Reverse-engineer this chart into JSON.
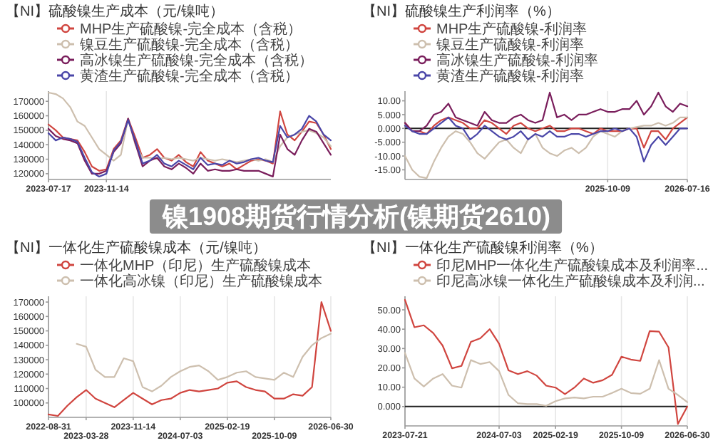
{
  "chart_data": [
    {
      "type": "line",
      "title": "【NI】硫酸镍生产成本（元/镍吨）",
      "legend": "top",
      "grid": "x",
      "categories": [
        "2023-07-17",
        null,
        null,
        null,
        null,
        null,
        null,
        null,
        "2023-11-14",
        null,
        null,
        null,
        null,
        null,
        null,
        null,
        null,
        null,
        null,
        null,
        null,
        null,
        null,
        null,
        null,
        null,
        null,
        null,
        null,
        null,
        null,
        null,
        null,
        null,
        null,
        null,
        null,
        null,
        null,
        null
      ],
      "ylim": [
        116000,
        177000
      ],
      "yticks": [
        120000,
        130000,
        140000,
        150000,
        160000,
        170000
      ],
      "series": [
        {
          "name": "MHP生产硫酸镍-完全成本（含税）",
          "color": "#d0453f",
          "values": [
            154000,
            150000,
            145000,
            144000,
            143000,
            135000,
            125000,
            122000,
            123000,
            137000,
            143000,
            158000,
            145000,
            131000,
            133000,
            137000,
            131000,
            129000,
            133000,
            128000,
            125000,
            135000,
            129000,
            127000,
            125000,
            127000,
            123000,
            126000,
            129000,
            130000,
            129000,
            127000,
            163000,
            147000,
            143000,
            149000,
            156000,
            155000,
            147000,
            137000
          ]
        },
        {
          "name": "镍豆生产硫酸镍-完全成本（含税）",
          "color": "#cdbfae",
          "values": [
            176000,
            175000,
            172000,
            166000,
            156000,
            153000,
            145000,
            137000,
            133000,
            129000,
            133000,
            158000,
            140000,
            131000,
            131000,
            130000,
            131000,
            130000,
            131000,
            130000,
            129000,
            131000,
            130000,
            129000,
            130000,
            129000,
            128000,
            129000,
            130000,
            129000,
            130000,
            128000,
            139000,
            145000,
            147000,
            149000,
            150000,
            148000,
            145000,
            139000
          ]
        },
        {
          "name": "高冰镍生产硫酸镍-完全成本（含税）",
          "color": "#7a1e5c",
          "values": [
            151000,
            146000,
            144000,
            143000,
            141000,
            129000,
            120000,
            120000,
            122000,
            135000,
            141000,
            158000,
            141000,
            125000,
            129000,
            131000,
            125000,
            123000,
            127000,
            124000,
            120000,
            127000,
            122000,
            123000,
            122000,
            122000,
            123000,
            122000,
            122000,
            122000,
            120000,
            118000,
            147000,
            137000,
            133000,
            143000,
            151000,
            149000,
            141000,
            133000
          ]
        },
        {
          "name": "黄渣生产硫酸镍-完全成本（含税）",
          "color": "#4a46a8",
          "values": [
            148000,
            143000,
            145000,
            144000,
            142000,
            131000,
            121000,
            118000,
            120000,
            136000,
            142000,
            157000,
            143000,
            127000,
            129000,
            133000,
            127000,
            125000,
            129000,
            126000,
            123000,
            131000,
            126000,
            127000,
            126000,
            129000,
            127000,
            128000,
            130000,
            131000,
            129000,
            128000,
            153000,
            145000,
            147000,
            151000,
            160000,
            156000,
            147000,
            143000
          ]
        }
      ]
    },
    {
      "type": "line",
      "title": "【NI】硫酸镍生产利润率（%）",
      "legend": "top",
      "grid": "x",
      "categories": [
        null,
        null,
        null,
        null,
        null,
        null,
        null,
        null,
        null,
        null,
        null,
        null,
        null,
        null,
        null,
        null,
        null,
        null,
        null,
        null,
        null,
        null,
        null,
        null,
        null,
        null,
        null,
        null,
        "2025-10-09",
        null,
        null,
        null,
        null,
        null,
        null,
        null,
        null,
        null,
        null,
        "2026-07-16"
      ],
      "ylim": [
        -18.5,
        13.5
      ],
      "yticks": [
        {
          "value": -15,
          "label": "-15.00"
        },
        {
          "value": -10,
          "label": "-10.00"
        },
        {
          "value": -5,
          "label": "-5.000"
        },
        {
          "value": 0,
          "label": "0.000"
        },
        {
          "value": 5,
          "label": "5.000"
        },
        {
          "value": 10,
          "label": "10.00"
        }
      ],
      "ref_lines": [
        {
          "axis": "y",
          "value": 0,
          "color": "#222222"
        }
      ],
      "series": [
        {
          "name": "MHP生产硫酸镍-利润率",
          "color": "#d0453f",
          "values": [
            2,
            -1,
            -1,
            -2,
            1,
            3,
            4,
            3,
            2,
            0,
            0,
            3,
            2,
            0,
            -2,
            1,
            2,
            0,
            -1,
            0,
            1,
            -1,
            -1,
            0,
            0,
            -1,
            -2,
            0,
            -1,
            -1,
            -1,
            0,
            0,
            -7,
            -1,
            -1,
            -4,
            0,
            2,
            4
          ]
        },
        {
          "name": "镍豆生产硫酸镍-利润率",
          "color": "#cdbfae",
          "values": [
            -10,
            -15,
            -17.5,
            -18,
            -12,
            -7,
            -3,
            -1,
            -2,
            -5,
            -9,
            -11,
            -8,
            -5,
            -4,
            -7,
            -9,
            -4,
            -2,
            -7,
            -9,
            -10,
            -8,
            -7,
            -9,
            -7,
            -3,
            -1,
            -2,
            -3,
            -1,
            0,
            0.5,
            1,
            1,
            2,
            1,
            2,
            4,
            4
          ]
        },
        {
          "name": "高冰镍生产硫酸镍-利润率",
          "color": "#7a1e5c",
          "values": [
            2,
            -1,
            -1,
            1,
            5,
            6,
            9,
            4,
            3,
            2,
            1,
            6,
            3,
            2,
            2,
            4,
            5,
            3,
            2,
            3,
            13,
            4,
            5,
            3,
            5,
            5,
            6,
            7,
            6,
            6,
            7,
            7,
            10,
            5,
            8,
            13,
            8,
            6,
            9,
            8
          ]
        },
        {
          "name": "黄渣生产硫酸镍-利润率",
          "color": "#4a46a8",
          "values": [
            1,
            -1,
            -2,
            -2,
            0,
            2,
            4,
            1,
            0,
            -4,
            -2,
            1,
            -1,
            -3,
            -4,
            -3,
            -1,
            -4,
            -2,
            -3,
            -1,
            -3,
            -3,
            -2,
            -2,
            -3,
            -2,
            -1,
            -1,
            0,
            -1,
            0,
            -3,
            -12,
            -6,
            -3,
            -6,
            -3,
            0,
            0
          ]
        }
      ]
    },
    {
      "type": "line",
      "title": "【NI】一体化生产硫酸镍成本（元/镍吨）",
      "legend": "top",
      "grid": "x",
      "categories": [
        "2022-08-31",
        null,
        null,
        null,
        "2023-03-28",
        null,
        null,
        null,
        null,
        "2023-11-14",
        null,
        null,
        null,
        null,
        "2024-07-03",
        null,
        null,
        null,
        null,
        "2025-02-19",
        null,
        null,
        null,
        null,
        "2025-10-09",
        null,
        null,
        null,
        null,
        null,
        "2026-06-30"
      ],
      "ylim": [
        90000,
        174000
      ],
      "yticks": [
        100000,
        110000,
        120000,
        130000,
        140000,
        150000,
        160000,
        170000
      ],
      "series": [
        {
          "name": "一体化MHP（印尼）生产硫酸镍成本",
          "color": "#d0453f",
          "values": [
            92000,
            91000,
            98000,
            104000,
            109000,
            103000,
            100000,
            97000,
            102000,
            107000,
            103000,
            99000,
            102000,
            103000,
            107000,
            109000,
            108000,
            109000,
            110000,
            114000,
            115000,
            111000,
            109000,
            108000,
            103000,
            103000,
            106000,
            105000,
            111000,
            170000,
            150000
          ]
        },
        {
          "name": "一体化高冰镍（印尼）生产硫酸镍成本",
          "color": "#cdbfae",
          "values": [
            null,
            null,
            null,
            141000,
            139000,
            123000,
            118000,
            118000,
            131000,
            129000,
            111000,
            108000,
            112000,
            118000,
            122000,
            125000,
            126000,
            122000,
            116000,
            118000,
            121000,
            122000,
            118000,
            117000,
            116000,
            121000,
            118000,
            132000,
            140000,
            145000,
            148000
          ]
        }
      ]
    },
    {
      "type": "line",
      "title": "【NI】一体化生产硫酸镍利润率（%）",
      "legend": "top",
      "grid": "x",
      "categories": [
        "2023-07-21",
        null,
        null,
        null,
        null,
        null,
        null,
        null,
        null,
        null,
        "2024-07-03",
        null,
        null,
        null,
        null,
        null,
        "2025-02-19",
        null,
        null,
        null,
        null,
        null,
        null,
        "2025-10-09",
        null,
        null,
        null,
        null,
        null,
        null,
        "2026-06-30"
      ],
      "ylim": [
        -10,
        57
      ],
      "yticks": [
        {
          "value": 0,
          "label": "0.000"
        },
        {
          "value": 10,
          "label": "10.00"
        },
        {
          "value": 20,
          "label": "20.00"
        },
        {
          "value": 30,
          "label": "30.00"
        },
        {
          "value": 40,
          "label": "40.00"
        },
        {
          "value": 50,
          "label": "50.00"
        }
      ],
      "ref_lines": [
        {
          "axis": "y",
          "value": 0,
          "color": "#222222"
        }
      ],
      "series": [
        {
          "name": "印尼MHP一体化生产硫酸镍成本及利润率...",
          "color": "#d0453f",
          "values": [
            55.1,
            41,
            42,
            38,
            31.5,
            19.8,
            21,
            33.4,
            35.3,
            40,
            32.5,
            18.7,
            16.8,
            18.3,
            16,
            10.8,
            9.8,
            6.4,
            9.8,
            14.5,
            12.3,
            13.6,
            16.4,
            25.8,
            24.3,
            23.6,
            39,
            38.7,
            30.6,
            -9,
            0
          ]
        },
        {
          "name": "印尼高冰镍一体化生产硫酸镍成本及利润...",
          "color": "#cdbfae",
          "values": [
            27.7,
            14.5,
            10.4,
            14.5,
            16.8,
            10.8,
            9.8,
            24,
            22,
            23,
            18.3,
            6,
            1.7,
            1.3,
            1.3,
            0.4,
            2.8,
            4.2,
            4.7,
            4.2,
            5.1,
            5.1,
            7,
            9.2,
            7,
            6.6,
            9.2,
            24,
            9.2,
            6,
            2.3
          ]
        }
      ]
    },
    {
      "type": "other",
      "title": "镍1908期货行情分析(镍期货2610)"
    }
  ]
}
